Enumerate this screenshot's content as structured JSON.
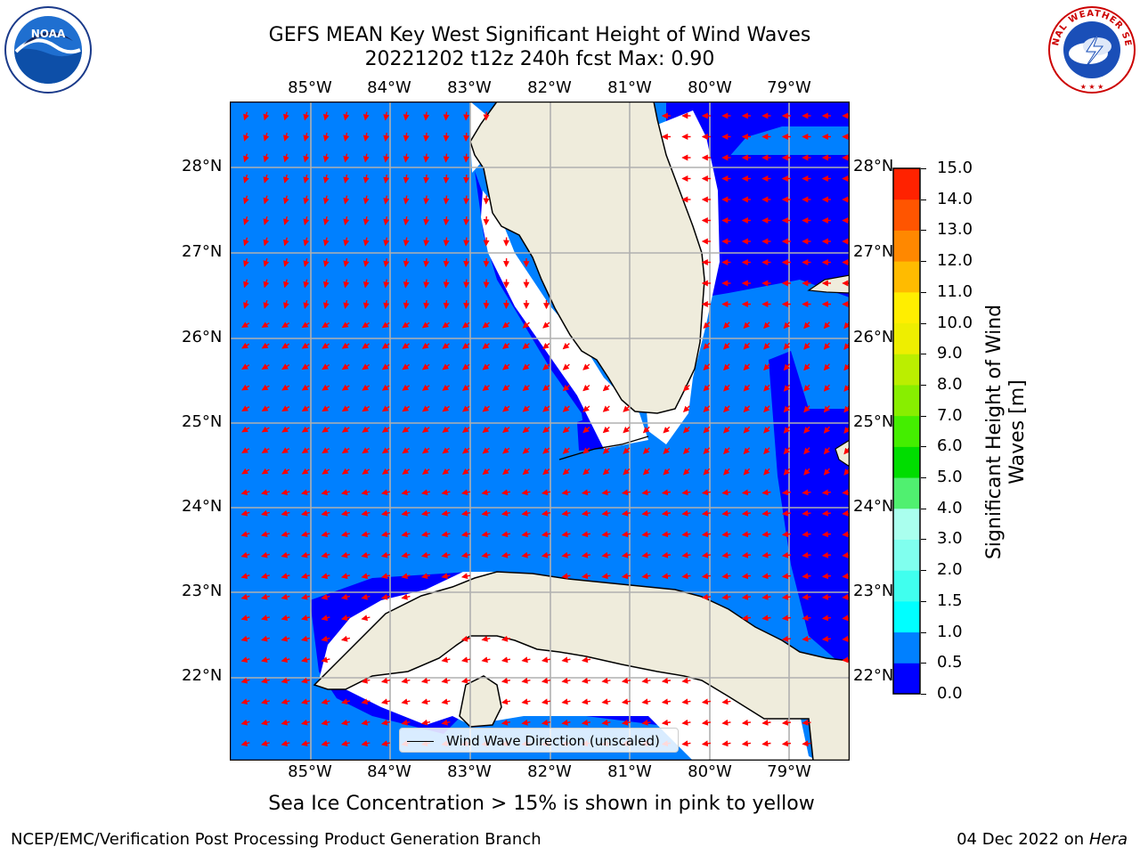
{
  "header": {
    "title_line1": "GEFS MEAN Key West Significant Height of Wind Waves",
    "title_line2": "20221202 t12z 240h fcst   Max: 0.90"
  },
  "logos": {
    "left": "NOAA",
    "right": "NATIONAL WEATHER SERVICE"
  },
  "map": {
    "lon_labels": [
      "85°W",
      "84°W",
      "83°W",
      "82°W",
      "81°W",
      "80°W",
      "79°W"
    ],
    "lat_labels": [
      "28°N",
      "27°N",
      "26°N",
      "25°N",
      "24°N",
      "23°N",
      "22°N"
    ],
    "lon_range": [
      -86.0,
      -78.3
    ],
    "lat_range": [
      21.0,
      28.75
    ],
    "land_color": "#efecdc",
    "legend_label": "Wind Wave Direction (unscaled)",
    "arrow_color": "#ff0000"
  },
  "colorbar": {
    "label": "Significant Height of Wind Waves [m]",
    "ticks": [
      "0.0",
      "0.5",
      "1.0",
      "1.5",
      "2.0",
      "3.0",
      "4.0",
      "5.0",
      "6.0",
      "7.0",
      "8.0",
      "9.0",
      "10.0",
      "11.0",
      "12.0",
      "13.0",
      "14.0",
      "15.0"
    ],
    "colors": [
      "#0000ff",
      "#0080ff",
      "#00ffff",
      "#40ffee",
      "#80ffee",
      "#aaffee",
      "#50f070",
      "#00dd00",
      "#44ee00",
      "#88ee00",
      "#bbee00",
      "#eeee00",
      "#ffee00",
      "#ffbb00",
      "#ff8800",
      "#ff5500",
      "#ff2200"
    ]
  },
  "footer": {
    "sea_ice": "Sea Ice Concentration > 15% is shown in pink to yellow",
    "left": "NCEP/EMC/Verification Post Processing Product Generation Branch",
    "date": "04 Dec 2022 on",
    "host": "Hera"
  }
}
